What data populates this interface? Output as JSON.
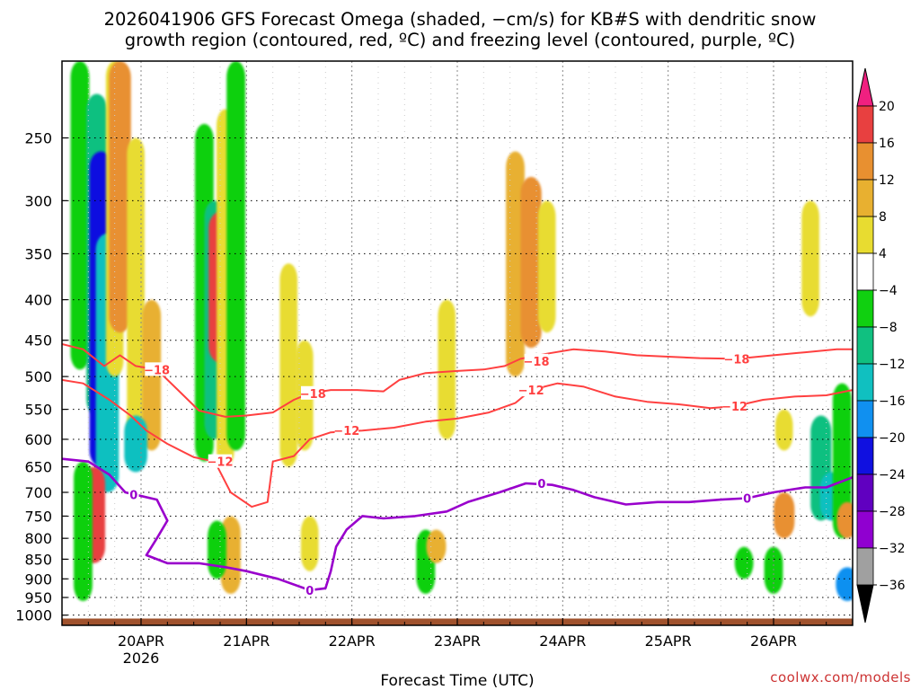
{
  "title": {
    "line1": "2026041906 GFS Forecast Omega (shaded, −cm/s) for KB#S with dendritic snow",
    "line2": "growth region (contoured, red, ºC) and freezing level (contoured, purple, ºC)"
  },
  "credit": "coolwx.com/models",
  "chart_data": {
    "type": "heatmap",
    "xlabel": "Forecast Time (UTC)",
    "ylabel": "",
    "x_ticks": [
      {
        "label": "20APR",
        "sublabel": "2026",
        "day": 20
      },
      {
        "label": "21APR",
        "sublabel": "",
        "day": 21
      },
      {
        "label": "22APR",
        "sublabel": "",
        "day": 22
      },
      {
        "label": "23APR",
        "sublabel": "",
        "day": 23
      },
      {
        "label": "24APR",
        "sublabel": "",
        "day": 24
      },
      {
        "label": "25APR",
        "sublabel": "",
        "day": 25
      },
      {
        "label": "26APR",
        "sublabel": "",
        "day": 26
      }
    ],
    "xlim": [
      19.25,
      26.75
    ],
    "y_scale": "log-pressure",
    "ylim_hPa": [
      1030,
      200
    ],
    "y_ticks_hPa": [
      250,
      300,
      350,
      400,
      450,
      500,
      550,
      600,
      650,
      700,
      750,
      800,
      850,
      900,
      950,
      1000
    ],
    "colorbar": {
      "units": "-cm/s",
      "levels": [
        -36,
        -32,
        -28,
        -24,
        -20,
        -16,
        -12,
        -8,
        -4,
        4,
        8,
        12,
        16,
        20
      ],
      "tick_labels": [
        "20",
        "16",
        "12",
        "8",
        "4",
        "−4",
        "−8",
        "−12",
        "−16",
        "−20",
        "−24",
        "−28",
        "−32",
        "−36"
      ],
      "colors_low_to_high": [
        "#000000",
        "#a0a0a0",
        "#9000d0",
        "#6000c0",
        "#1010e0",
        "#1090f0",
        "#10c0c0",
        "#10c080",
        "#10d010",
        "#ffffff",
        "#e8dc30",
        "#e8b030",
        "#e89030",
        "#e84040",
        "#f02080"
      ]
    },
    "surface_color": "#a0522d",
    "omega_shading": [
      {
        "day": 19.42,
        "p_top": 200,
        "p_bot": 490,
        "value": -8
      },
      {
        "day": 19.58,
        "p_top": 220,
        "p_bot": 560,
        "value": -12
      },
      {
        "day": 19.62,
        "p_top": 260,
        "p_bot": 650,
        "value": -24
      },
      {
        "day": 19.68,
        "p_top": 330,
        "p_bot": 700,
        "value": -16
      },
      {
        "day": 19.75,
        "p_top": 200,
        "p_bot": 500,
        "value": 6
      },
      {
        "day": 19.8,
        "p_top": 200,
        "p_bot": 440,
        "value": 14
      },
      {
        "day": 19.95,
        "p_top": 250,
        "p_bot": 650,
        "value": 6
      },
      {
        "day": 20.1,
        "p_top": 400,
        "p_bot": 620,
        "value": 8
      },
      {
        "day": 19.55,
        "p_top": 650,
        "p_bot": 860,
        "value": 18
      },
      {
        "day": 19.45,
        "p_top": 640,
        "p_bot": 960,
        "value": -8
      },
      {
        "day": 19.95,
        "p_top": 560,
        "p_bot": 660,
        "value": -16
      },
      {
        "day": 20.6,
        "p_top": 240,
        "p_bot": 640,
        "value": -8
      },
      {
        "day": 20.7,
        "p_top": 300,
        "p_bot": 600,
        "value": -12
      },
      {
        "day": 20.75,
        "p_top": 310,
        "p_bot": 480,
        "value": 16
      },
      {
        "day": 20.8,
        "p_top": 230,
        "p_bot": 650,
        "value": 6
      },
      {
        "day": 20.9,
        "p_top": 200,
        "p_bot": 620,
        "value": -8
      },
      {
        "day": 20.85,
        "p_top": 750,
        "p_bot": 940,
        "value": 10
      },
      {
        "day": 20.72,
        "p_top": 760,
        "p_bot": 900,
        "value": -8
      },
      {
        "day": 21.4,
        "p_top": 360,
        "p_bot": 650,
        "value": 6
      },
      {
        "day": 21.55,
        "p_top": 450,
        "p_bot": 620,
        "value": 6
      },
      {
        "day": 21.6,
        "p_top": 750,
        "p_bot": 880,
        "value": 6
      },
      {
        "day": 22.9,
        "p_top": 400,
        "p_bot": 600,
        "value": 6
      },
      {
        "day": 22.7,
        "p_top": 780,
        "p_bot": 940,
        "value": -8
      },
      {
        "day": 22.8,
        "p_top": 780,
        "p_bot": 860,
        "value": 10
      },
      {
        "day": 23.55,
        "p_top": 260,
        "p_bot": 500,
        "value": 8
      },
      {
        "day": 23.7,
        "p_top": 280,
        "p_bot": 460,
        "value": 12
      },
      {
        "day": 23.85,
        "p_top": 300,
        "p_bot": 440,
        "value": 6
      },
      {
        "day": 26.0,
        "p_top": 820,
        "p_bot": 940,
        "value": -8
      },
      {
        "day": 25.72,
        "p_top": 820,
        "p_bot": 900,
        "value": -8
      },
      {
        "day": 26.1,
        "p_top": 550,
        "p_bot": 620,
        "value": 6
      },
      {
        "day": 26.1,
        "p_top": 700,
        "p_bot": 800,
        "value": 12
      },
      {
        "day": 26.45,
        "p_top": 560,
        "p_bot": 760,
        "value": -12
      },
      {
        "day": 26.55,
        "p_top": 660,
        "p_bot": 760,
        "value": -16
      },
      {
        "day": 26.65,
        "p_top": 510,
        "p_bot": 800,
        "value": -8
      },
      {
        "day": 26.7,
        "p_top": 720,
        "p_bot": 800,
        "value": 12
      },
      {
        "day": 26.7,
        "p_top": 870,
        "p_bot": 960,
        "value": -20
      },
      {
        "day": 26.35,
        "p_top": 300,
        "p_bot": 420,
        "value": 6
      }
    ],
    "contours": [
      {
        "name": "-18 C isotherm",
        "level_label": "−18",
        "color": "#ff4040",
        "labels": [
          {
            "day": 20.15,
            "p": 490
          },
          {
            "day": 21.63,
            "p": 525
          },
          {
            "day": 23.75,
            "p": 478
          },
          {
            "day": 25.65,
            "p": 475
          }
        ],
        "points": [
          [
            19.25,
            455
          ],
          [
            19.45,
            462
          ],
          [
            19.65,
            485
          ],
          [
            19.8,
            470
          ],
          [
            19.95,
            485
          ],
          [
            20.15,
            490
          ],
          [
            20.35,
            520
          ],
          [
            20.55,
            552
          ],
          [
            20.8,
            562
          ],
          [
            21.0,
            560
          ],
          [
            21.25,
            555
          ],
          [
            21.45,
            535
          ],
          [
            21.6,
            525
          ],
          [
            21.8,
            520
          ],
          [
            22.05,
            520
          ],
          [
            22.3,
            522
          ],
          [
            22.45,
            505
          ],
          [
            22.7,
            495
          ],
          [
            23.0,
            492
          ],
          [
            23.25,
            490
          ],
          [
            23.45,
            485
          ],
          [
            23.6,
            475
          ],
          [
            23.85,
            468
          ],
          [
            24.1,
            462
          ],
          [
            24.4,
            465
          ],
          [
            24.7,
            470
          ],
          [
            25.0,
            472
          ],
          [
            25.3,
            474
          ],
          [
            25.65,
            475
          ],
          [
            26.0,
            470
          ],
          [
            26.3,
            466
          ],
          [
            26.6,
            462
          ],
          [
            26.75,
            462
          ]
        ]
      },
      {
        "name": "-12 C isotherm",
        "level_label": "−12",
        "color": "#ff4040",
        "labels": [
          {
            "day": 20.75,
            "p": 640
          },
          {
            "day": 21.95,
            "p": 585
          },
          {
            "day": 23.7,
            "p": 520
          },
          {
            "day": 25.63,
            "p": 545
          }
        ],
        "points": [
          [
            19.25,
            505
          ],
          [
            19.45,
            510
          ],
          [
            19.7,
            535
          ],
          [
            19.9,
            560
          ],
          [
            20.05,
            585
          ],
          [
            20.25,
            608
          ],
          [
            20.5,
            632
          ],
          [
            20.7,
            640
          ],
          [
            20.85,
            700
          ],
          [
            21.05,
            730
          ],
          [
            21.2,
            720
          ],
          [
            21.25,
            640
          ],
          [
            21.45,
            630
          ],
          [
            21.6,
            600
          ],
          [
            21.8,
            588
          ],
          [
            22.1,
            585
          ],
          [
            22.4,
            580
          ],
          [
            22.7,
            570
          ],
          [
            23.0,
            565
          ],
          [
            23.3,
            555
          ],
          [
            23.55,
            540
          ],
          [
            23.7,
            520
          ],
          [
            23.95,
            510
          ],
          [
            24.2,
            515
          ],
          [
            24.5,
            530
          ],
          [
            24.8,
            538
          ],
          [
            25.1,
            542
          ],
          [
            25.4,
            548
          ],
          [
            25.63,
            545
          ],
          [
            25.9,
            535
          ],
          [
            26.2,
            530
          ],
          [
            26.5,
            528
          ],
          [
            26.75,
            520
          ]
        ]
      },
      {
        "name": "0 C freezing level",
        "level_label": "0",
        "color": "#9900cc",
        "labels": [
          {
            "day": 19.93,
            "p": 705
          },
          {
            "day": 21.6,
            "p": 930
          },
          {
            "day": 23.8,
            "p": 682
          },
          {
            "day": 25.75,
            "p": 712
          }
        ],
        "points": [
          [
            19.25,
            635
          ],
          [
            19.5,
            640
          ],
          [
            19.7,
            665
          ],
          [
            19.85,
            700
          ],
          [
            19.95,
            705
          ],
          [
            20.15,
            715
          ],
          [
            20.25,
            760
          ],
          [
            20.15,
            800
          ],
          [
            20.05,
            840
          ],
          [
            20.25,
            860
          ],
          [
            20.55,
            860
          ],
          [
            20.8,
            870
          ],
          [
            21.0,
            880
          ],
          [
            21.3,
            900
          ],
          [
            21.6,
            930
          ],
          [
            21.75,
            925
          ],
          [
            21.8,
            880
          ],
          [
            21.85,
            820
          ],
          [
            21.95,
            780
          ],
          [
            22.1,
            750
          ],
          [
            22.3,
            755
          ],
          [
            22.6,
            750
          ],
          [
            22.9,
            740
          ],
          [
            23.1,
            720
          ],
          [
            23.4,
            700
          ],
          [
            23.65,
            682
          ],
          [
            23.9,
            685
          ],
          [
            24.1,
            695
          ],
          [
            24.3,
            710
          ],
          [
            24.6,
            725
          ],
          [
            24.9,
            720
          ],
          [
            25.2,
            720
          ],
          [
            25.5,
            715
          ],
          [
            25.75,
            712
          ],
          [
            26.0,
            700
          ],
          [
            26.3,
            690
          ],
          [
            26.5,
            690
          ],
          [
            26.75,
            670
          ]
        ]
      }
    ]
  }
}
